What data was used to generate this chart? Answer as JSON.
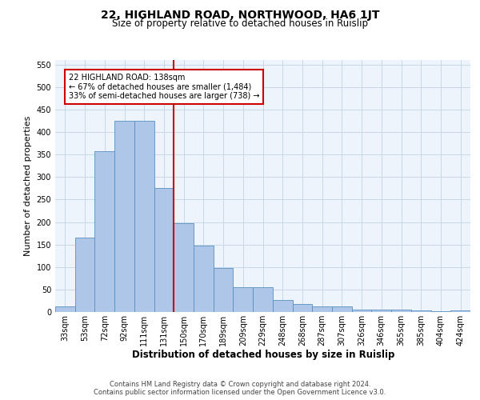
{
  "title": "22, HIGHLAND ROAD, NORTHWOOD, HA6 1JT",
  "subtitle": "Size of property relative to detached houses in Ruislip",
  "xlabel": "Distribution of detached houses by size in Ruislip",
  "ylabel": "Number of detached properties",
  "categories": [
    "33sqm",
    "53sqm",
    "72sqm",
    "92sqm",
    "111sqm",
    "131sqm",
    "150sqm",
    "170sqm",
    "189sqm",
    "209sqm",
    "229sqm",
    "248sqm",
    "268sqm",
    "287sqm",
    "307sqm",
    "326sqm",
    "346sqm",
    "365sqm",
    "385sqm",
    "404sqm",
    "424sqm"
  ],
  "values": [
    12,
    165,
    358,
    425,
    425,
    275,
    198,
    148,
    97,
    55,
    55,
    26,
    18,
    12,
    12,
    6,
    5,
    5,
    3,
    1,
    4
  ],
  "bar_color": "#aec6e8",
  "bar_edge_color": "#5a8fc0",
  "vline_x": 5.5,
  "vline_color": "#cc0000",
  "ylim": [
    0,
    560
  ],
  "yticks": [
    0,
    50,
    100,
    150,
    200,
    250,
    300,
    350,
    400,
    450,
    500,
    550
  ],
  "annotation_box_text": "22 HIGHLAND ROAD: 138sqm\n← 67% of detached houses are smaller (1,484)\n33% of semi-detached houses are larger (738) →",
  "annotation_box_color": "#cc0000",
  "annotation_box_facecolor": "white",
  "footer_text": "Contains HM Land Registry data © Crown copyright and database right 2024.\nContains public sector information licensed under the Open Government Licence v3.0.",
  "grid_color": "#c8d8e8",
  "background_color": "#eef4fb",
  "title_fontsize": 10,
  "subtitle_fontsize": 8.5,
  "ylabel_fontsize": 8,
  "xlabel_fontsize": 8.5,
  "tick_fontsize": 7,
  "ann_fontsize": 7,
  "footer_fontsize": 6
}
